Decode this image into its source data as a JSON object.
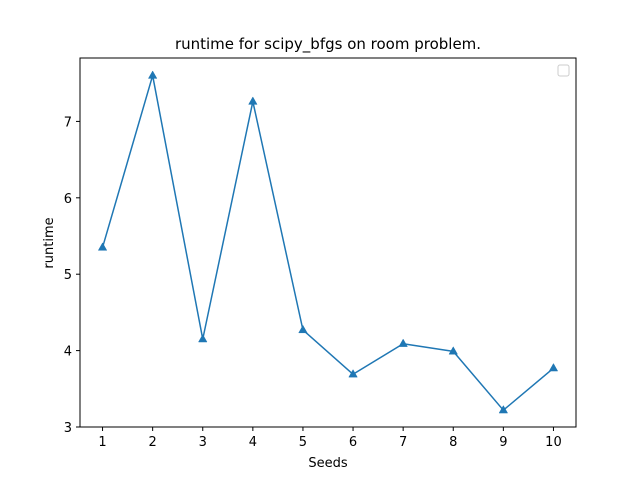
{
  "chart_data": {
    "type": "line",
    "title": "runtime for scipy_bfgs on room problem.",
    "xlabel": "Seeds",
    "ylabel": "runtime",
    "x": [
      1,
      2,
      3,
      4,
      5,
      6,
      7,
      8,
      9,
      10
    ],
    "x_ticks": [
      "1",
      "2",
      "3",
      "4",
      "5",
      "6",
      "7",
      "8",
      "9",
      "10"
    ],
    "y_ticks": [
      "3",
      "4",
      "5",
      "6",
      "7"
    ],
    "xlim": [
      0.55,
      10.45
    ],
    "ylim": [
      3.0,
      7.83
    ],
    "series": [
      {
        "values": [
          5.35,
          7.6,
          4.15,
          7.26,
          4.27,
          3.69,
          4.09,
          3.99,
          3.22,
          3.77
        ],
        "color": "#1f77b4",
        "marker": "triangle-up"
      }
    ],
    "legend": "top-right",
    "grid": false
  }
}
